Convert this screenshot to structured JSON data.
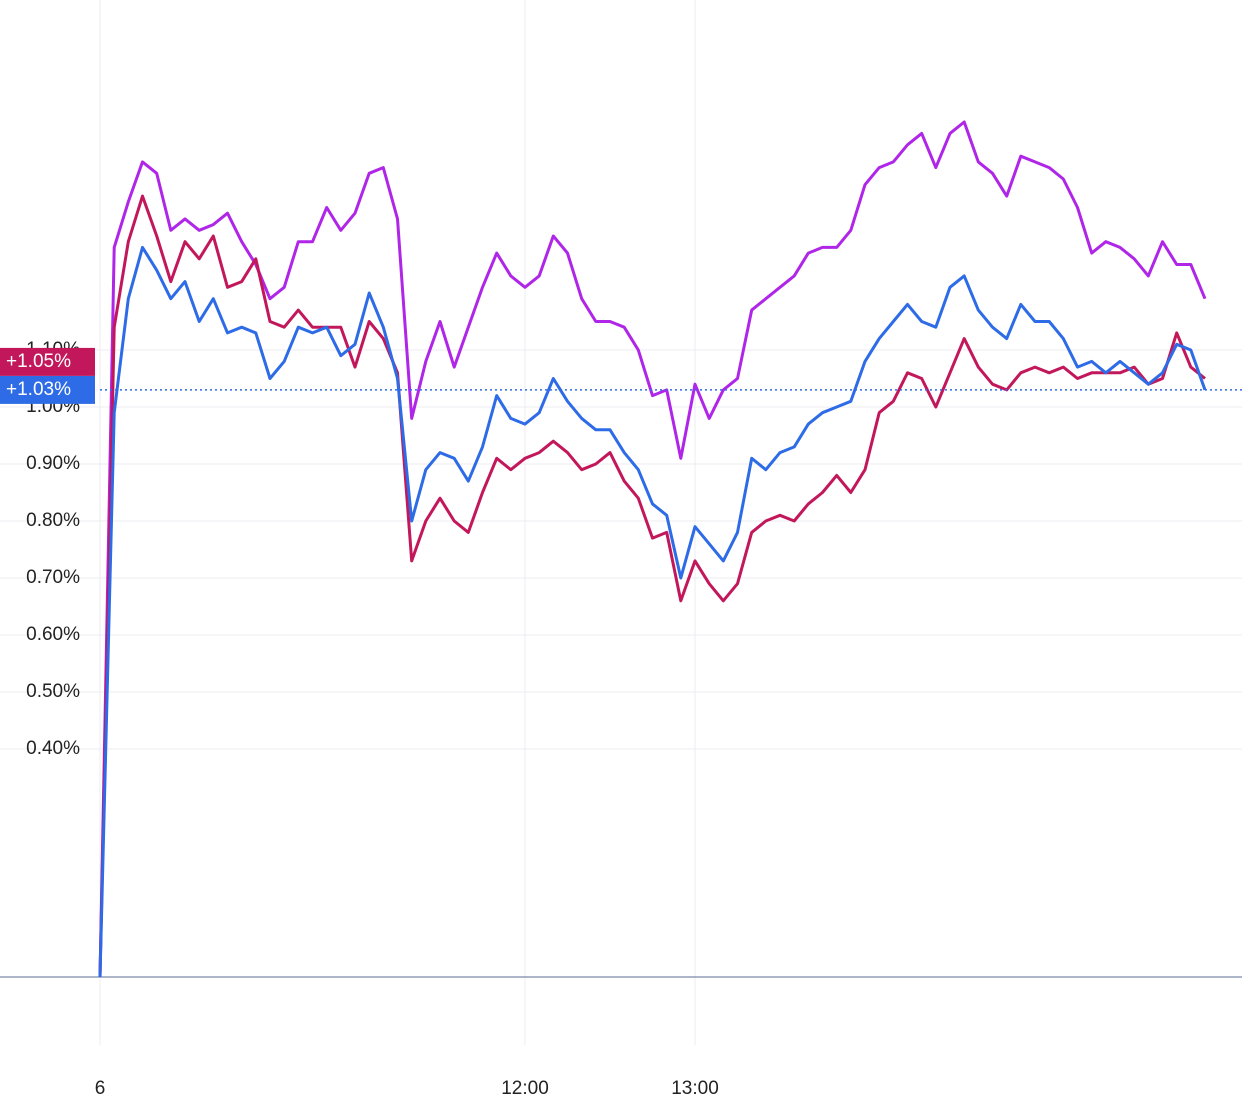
{
  "chart_data": {
    "type": "line",
    "x": [
      "09:30",
      "09:35",
      "09:40",
      "09:45",
      "09:50",
      "09:55",
      "10:00",
      "10:05",
      "10:10",
      "10:15",
      "10:20",
      "10:25",
      "10:30",
      "10:35",
      "10:40",
      "10:45",
      "10:50",
      "10:55",
      "11:00",
      "11:05",
      "11:10",
      "11:15",
      "11:20",
      "11:25",
      "11:30",
      "11:35",
      "11:40",
      "11:45",
      "11:50",
      "11:55",
      "12:00",
      "12:05",
      "12:10",
      "12:15",
      "12:20",
      "12:25",
      "12:30",
      "12:35",
      "12:40",
      "12:45",
      "12:50",
      "12:55",
      "13:00",
      "13:05",
      "13:10",
      "13:15",
      "13:20",
      "13:25",
      "13:30",
      "13:35",
      "13:40",
      "13:45",
      "13:50",
      "13:55",
      "14:00",
      "14:05",
      "14:10",
      "14:15",
      "14:20",
      "14:25",
      "14:30",
      "14:35",
      "14:40",
      "14:45",
      "14:50",
      "14:55",
      "15:00",
      "15:05",
      "15:10",
      "15:15",
      "15:20",
      "15:25",
      "15:30",
      "15:35",
      "15:40",
      "15:45",
      "15:50",
      "15:55",
      "16:00"
    ],
    "xlim": [
      "09:30",
      "16:00"
    ],
    "xticks": [
      {
        "value": "09:30",
        "label": "6"
      },
      "12:00",
      "13:00"
    ],
    "ylim": [
      -0.1,
      1.7
    ],
    "yticks": [
      {
        "value": 0.4,
        "label": "0.40%"
      },
      {
        "value": 0.5,
        "label": "0.50%"
      },
      {
        "value": 0.6,
        "label": "0.60%"
      },
      {
        "value": 0.7,
        "label": "0.70%"
      },
      {
        "value": 0.8,
        "label": "0.80%"
      },
      {
        "value": 0.9,
        "label": "0.90%"
      },
      {
        "value": 1.0,
        "label": "1.00%"
      },
      {
        "value": 1.1,
        "label": "1.10%"
      }
    ],
    "grid": true,
    "series": [
      {
        "color": "#b026e8",
        "values": [
          0,
          1.28,
          1.36,
          1.43,
          1.41,
          1.31,
          1.33,
          1.31,
          1.32,
          1.34,
          1.29,
          1.25,
          1.19,
          1.21,
          1.29,
          1.29,
          1.35,
          1.31,
          1.34,
          1.41,
          1.42,
          1.33,
          0.98,
          1.08,
          1.15,
          1.07,
          1.14,
          1.21,
          1.27,
          1.23,
          1.21,
          1.23,
          1.3,
          1.27,
          1.19,
          1.15,
          1.15,
          1.14,
          1.1,
          1.02,
          1.03,
          0.91,
          1.04,
          0.98,
          1.03,
          1.05,
          1.17,
          1.19,
          1.21,
          1.23,
          1.27,
          1.28,
          1.28,
          1.31,
          1.39,
          1.42,
          1.43,
          1.46,
          1.48,
          1.42,
          1.48,
          1.5,
          1.43,
          1.41,
          1.37,
          1.44,
          1.43,
          1.42,
          1.4,
          1.35,
          1.27,
          1.29,
          1.28,
          1.26,
          1.23,
          1.29,
          1.25,
          1.25,
          1.19
        ]
      },
      {
        "color": "#c2185b",
        "last_value_label": "+1.05%",
        "values": [
          0,
          1.14,
          1.29,
          1.37,
          1.3,
          1.22,
          1.29,
          1.26,
          1.3,
          1.21,
          1.22,
          1.26,
          1.15,
          1.14,
          1.17,
          1.14,
          1.14,
          1.14,
          1.07,
          1.15,
          1.12,
          1.06,
          0.73,
          0.8,
          0.84,
          0.8,
          0.78,
          0.85,
          0.91,
          0.89,
          0.91,
          0.92,
          0.94,
          0.92,
          0.89,
          0.9,
          0.92,
          0.87,
          0.84,
          0.77,
          0.78,
          0.66,
          0.73,
          0.69,
          0.66,
          0.69,
          0.78,
          0.8,
          0.81,
          0.8,
          0.83,
          0.85,
          0.88,
          0.85,
          0.89,
          0.99,
          1.01,
          1.06,
          1.05,
          1.0,
          1.06,
          1.12,
          1.07,
          1.04,
          1.03,
          1.06,
          1.07,
          1.06,
          1.07,
          1.05,
          1.06,
          1.06,
          1.06,
          1.07,
          1.04,
          1.05,
          1.13,
          1.07,
          1.05
        ]
      },
      {
        "color": "#2e6be6",
        "last_value_label": "+1.03%",
        "values": [
          0,
          0.99,
          1.19,
          1.28,
          1.24,
          1.19,
          1.22,
          1.15,
          1.19,
          1.13,
          1.14,
          1.13,
          1.05,
          1.08,
          1.14,
          1.13,
          1.14,
          1.09,
          1.11,
          1.2,
          1.14,
          1.05,
          0.8,
          0.89,
          0.92,
          0.91,
          0.87,
          0.93,
          1.02,
          0.98,
          0.97,
          0.99,
          1.05,
          1.01,
          0.98,
          0.96,
          0.96,
          0.92,
          0.89,
          0.83,
          0.81,
          0.7,
          0.79,
          0.76,
          0.73,
          0.78,
          0.91,
          0.89,
          0.92,
          0.93,
          0.97,
          0.99,
          1.0,
          1.01,
          1.08,
          1.12,
          1.15,
          1.18,
          1.15,
          1.14,
          1.21,
          1.23,
          1.17,
          1.14,
          1.12,
          1.18,
          1.15,
          1.15,
          1.12,
          1.07,
          1.08,
          1.06,
          1.08,
          1.06,
          1.04,
          1.06,
          1.11,
          1.1,
          1.03
        ]
      }
    ]
  }
}
